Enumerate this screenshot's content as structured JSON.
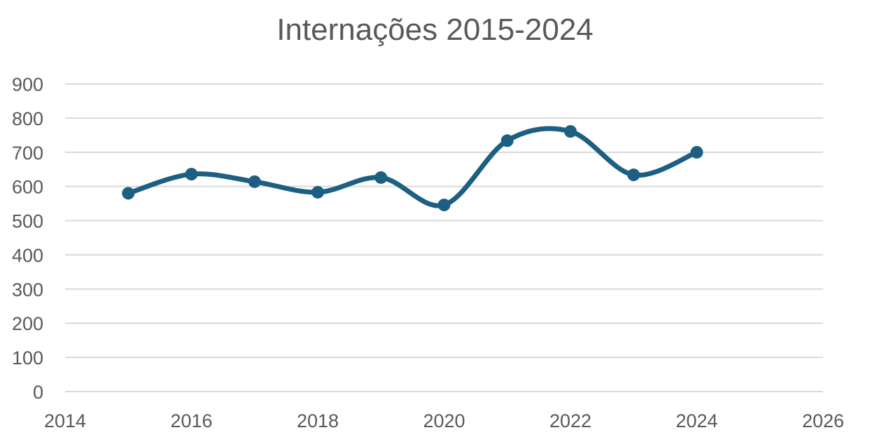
{
  "chart_data": {
    "type": "scatter",
    "title": "Internações 2015-2024",
    "xlabel": "",
    "ylabel": "",
    "xlim": [
      2014,
      2026
    ],
    "ylim": [
      0,
      900
    ],
    "x_ticks": [
      "2014",
      "2016",
      "2018",
      "2020",
      "2022",
      "2024",
      "2026"
    ],
    "y_ticks": [
      "0",
      "100",
      "200",
      "300",
      "400",
      "500",
      "600",
      "700",
      "800",
      "900"
    ],
    "grid": true,
    "legend": "none",
    "smooth": true,
    "color": "#1c5f82",
    "series": [
      {
        "x": [
          2015,
          2016,
          2017,
          2018,
          2019,
          2020,
          2021,
          2022,
          2023,
          2024
        ],
        "y": [
          580,
          636,
          614,
          583,
          626,
          546,
          734,
          761,
          634,
          700
        ]
      }
    ]
  }
}
